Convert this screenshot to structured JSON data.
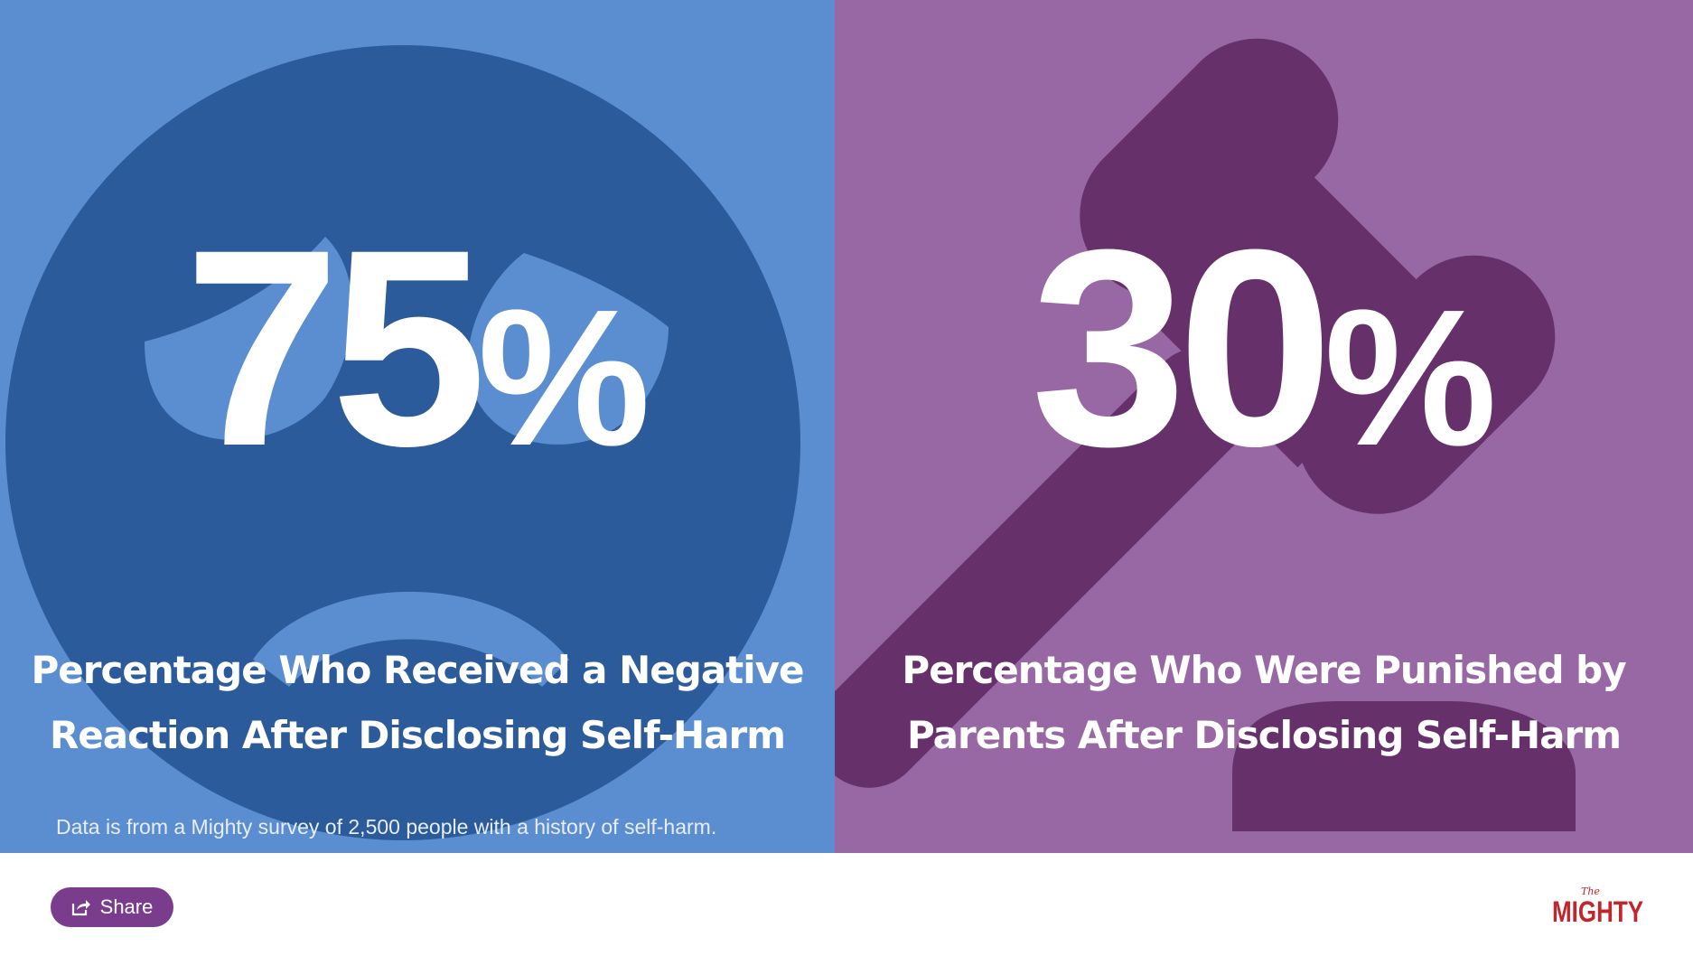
{
  "panels": {
    "left": {
      "stat_number": "75",
      "stat_symbol": "%",
      "caption_line1": "Percentage Who Received a Negative",
      "caption_line2": "Reaction After Disclosing Self-Harm",
      "footnote": "Data is from a Mighty survey of 2,500 people with a history of self-harm.",
      "background_color": "#5b8ed1",
      "icon_color": "#2b5b9b",
      "icon": "sad-face-icon"
    },
    "right": {
      "stat_number": "30",
      "stat_symbol": "%",
      "caption_line1": "Percentage Who Were Punished by",
      "caption_line2": "Parents After Disclosing Self-Harm",
      "background_color": "#9768a3",
      "icon_color": "#66316b",
      "icon": "gavel-icon"
    }
  },
  "footer": {
    "share_label": "Share",
    "share_icon": "share-icon",
    "share_color": "#7a3d8e",
    "logo_small": "The",
    "logo_main": "MIGHTY",
    "logo_color": "#c0262b"
  }
}
